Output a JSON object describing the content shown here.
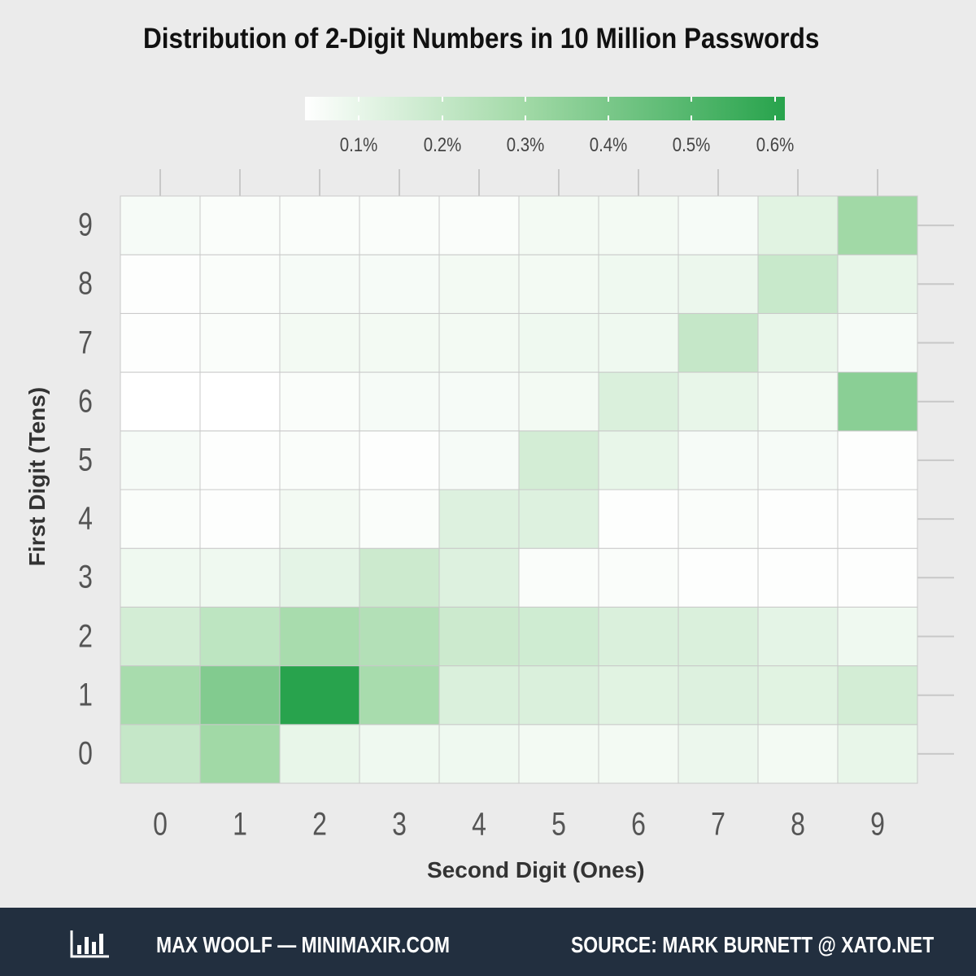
{
  "chart_data": {
    "type": "heatmap",
    "title": "Distribution of 2-Digit Numbers in 10 Million Passwords",
    "xlabel": "Second Digit (Ones)",
    "ylabel": "First Digit (Tens)",
    "x_categories": [
      "0",
      "1",
      "2",
      "3",
      "4",
      "5",
      "6",
      "7",
      "8",
      "9"
    ],
    "y_categories": [
      "0",
      "1",
      "2",
      "3",
      "4",
      "5",
      "6",
      "7",
      "8",
      "9"
    ],
    "legend": {
      "ticks": [
        0.1,
        0.2,
        0.3,
        0.4,
        0.5,
        0.6
      ],
      "labels": [
        "0.1%",
        "0.2%",
        "0.3%",
        "0.4%",
        "0.5%",
        "0.6%"
      ],
      "range": [
        0.035,
        0.612
      ],
      "placement": "top"
    },
    "unit": "%",
    "values_by_first_digit": {
      "0": [
        0.2,
        0.3,
        0.1,
        0.08,
        0.08,
        0.07,
        0.07,
        0.09,
        0.07,
        0.1
      ],
      "1": [
        0.28,
        0.38,
        0.61,
        0.28,
        0.14,
        0.14,
        0.12,
        0.13,
        0.12,
        0.16
      ],
      "2": [
        0.16,
        0.22,
        0.28,
        0.25,
        0.18,
        0.17,
        0.14,
        0.14,
        0.11,
        0.08
      ],
      "3": [
        0.08,
        0.08,
        0.11,
        0.18,
        0.13,
        0.05,
        0.05,
        0.04,
        0.04,
        0.04
      ],
      "4": [
        0.05,
        0.04,
        0.07,
        0.05,
        0.13,
        0.13,
        0.04,
        0.05,
        0.04,
        0.04
      ],
      "5": [
        0.06,
        0.04,
        0.05,
        0.04,
        0.06,
        0.16,
        0.1,
        0.06,
        0.06,
        0.04
      ],
      "6": [
        0.03,
        0.035,
        0.05,
        0.06,
        0.06,
        0.07,
        0.14,
        0.1,
        0.07,
        0.36
      ],
      "7": [
        0.04,
        0.05,
        0.07,
        0.07,
        0.07,
        0.08,
        0.08,
        0.2,
        0.1,
        0.06
      ],
      "8": [
        0.04,
        0.05,
        0.06,
        0.06,
        0.07,
        0.07,
        0.08,
        0.09,
        0.19,
        0.1
      ],
      "9": [
        0.06,
        0.05,
        0.05,
        0.05,
        0.05,
        0.07,
        0.07,
        0.06,
        0.12,
        0.3
      ]
    },
    "colors": {
      "low": "#ffffff",
      "mid": "#a1d9a6",
      "high": "#27a34c"
    }
  },
  "footer": {
    "author": "MAX WOOLF — MINIMAXIR.COM",
    "source": "SOURCE: MARK BURNETT @ XATO.NET"
  }
}
